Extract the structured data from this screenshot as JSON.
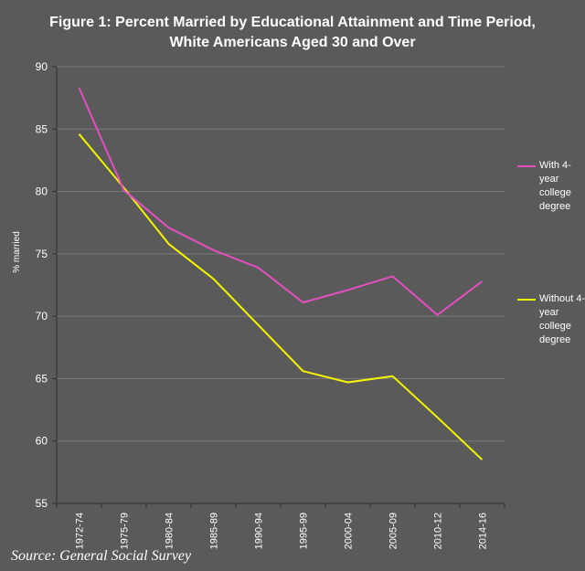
{
  "chart_data": {
    "type": "line",
    "title": "Figure 1: Percent Married by Educational Attainment and Time Period, White Americans Aged 30 and Over",
    "title_lines": [
      "Figure 1: Percent Married by Educational Attainment and Time Period,",
      "White Americans Aged 30 and Over"
    ],
    "xlabel": "",
    "ylabel": "% married",
    "ylim": [
      55,
      90
    ],
    "yticks": [
      55,
      60,
      65,
      70,
      75,
      80,
      85,
      90
    ],
    "grid": true,
    "categories": [
      "1972-74",
      "1975-79",
      "1980-84",
      "1985-89",
      "1990-94",
      "1995-99",
      "2000-04",
      "2005-09",
      "2010-12",
      "2014-16"
    ],
    "series": [
      {
        "name": "With 4-year college degree",
        "legend_lines": [
          "With 4-",
          "year",
          "college",
          "degree"
        ],
        "color": "#e44fc0",
        "values": [
          88.3,
          80.1,
          77.1,
          75.3,
          73.9,
          71.1,
          72.1,
          73.2,
          70.1,
          72.8
        ]
      },
      {
        "name": "Without 4-year college degree",
        "legend_lines": [
          "Without 4-",
          "year",
          "college",
          "degree"
        ],
        "color": "#f5f500",
        "values": [
          84.6,
          80.3,
          75.8,
          73.0,
          69.3,
          65.6,
          64.7,
          65.2,
          61.9,
          58.5
        ]
      }
    ]
  },
  "source": "Source: General Social Survey",
  "colors": {
    "background": "#5a5a5a",
    "grid": "#7a7a7a",
    "axis": "#2e2e2e",
    "text": "#ffffff"
  }
}
